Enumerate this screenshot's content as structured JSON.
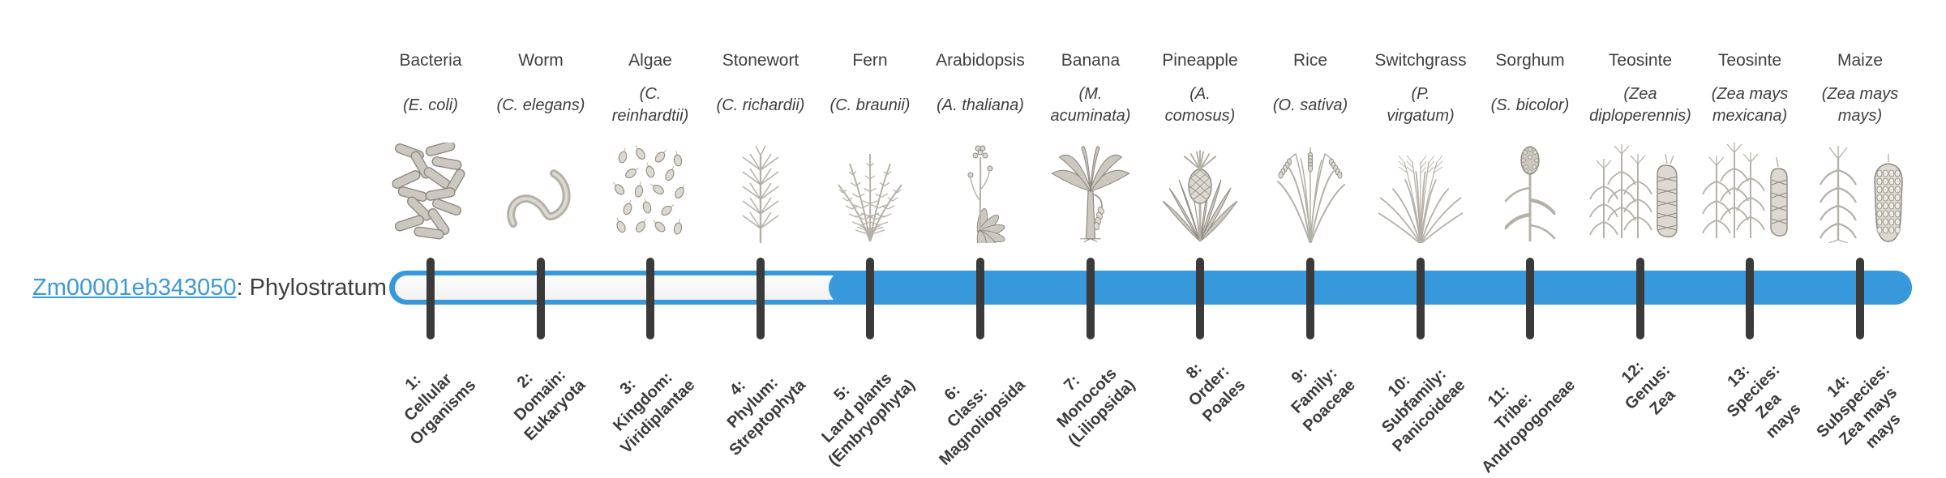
{
  "gene": {
    "id": "Zm00001eb343050",
    "suffix": ": Phylostratum 5",
    "phylostratum": 5
  },
  "timeline": {
    "bar_color": "#3798db",
    "unfilled_color": "#f8f8f8",
    "tick_color": "#3a3a3a",
    "link_color": "#3f99d5",
    "filled_from_stratum": 5,
    "strata_count": 14
  },
  "organisms": [
    {
      "common": "Bacteria",
      "scientific": "(E. coli)",
      "icon": "bacteria-icon",
      "stratum": "1:\nCellular\nOrganisms"
    },
    {
      "common": "Worm",
      "scientific": "(C. elegans)",
      "icon": "worm-icon",
      "stratum": "2:\nDomain:\nEukaryota"
    },
    {
      "common": "Algae",
      "scientific": "(C.\nreinhardtii)",
      "icon": "algae-icon",
      "stratum": "3:\nKingdom:\nViridiplantae"
    },
    {
      "common": "Stonewort",
      "scientific": "(C. richardii)",
      "icon": "stonewort-icon",
      "stratum": "4:\nPhylum:\nStreptophyta"
    },
    {
      "common": "Fern",
      "scientific": "(C. braunii)",
      "icon": "fern-icon",
      "stratum": "5:\nLand plants\n(Embryophyta)"
    },
    {
      "common": "Arabidopsis",
      "scientific": "(A. thaliana)",
      "icon": "arabidopsis-icon",
      "stratum": "6:\nClass:\nMagnoliopsida"
    },
    {
      "common": "Banana",
      "scientific": "(M.\nacuminata)",
      "icon": "banana-icon",
      "stratum": "7:\nMonocots\n(Liliopsida)"
    },
    {
      "common": "Pineapple",
      "scientific": "(A.\ncomosus)",
      "icon": "pineapple-icon",
      "stratum": "8:\nOrder:\nPoales"
    },
    {
      "common": "Rice",
      "scientific": "(O. sativa)",
      "icon": "rice-icon",
      "stratum": "9:\nFamily:\nPoaceae"
    },
    {
      "common": "Switchgrass",
      "scientific": "(P.\nvirgatum)",
      "icon": "switchgrass-icon",
      "stratum": "10:\nSubfamily:\nPanicoideae"
    },
    {
      "common": "Sorghum",
      "scientific": "(S. bicolor)",
      "icon": "sorghum-icon",
      "stratum": "11:\nTribe:\nAndropogoneae"
    },
    {
      "common": "Teosinte",
      "scientific": "(Zea\ndiploperennis)",
      "icon": "teosinte-diploperennis-icon",
      "stratum": "12:\nGenus:\nZea"
    },
    {
      "common": "Teosinte",
      "scientific": "(Zea mays\nmexicana)",
      "icon": "teosinte-mexicana-icon",
      "stratum": "13:\nSpecies:\nZea\nmays"
    },
    {
      "common": "Maize",
      "scientific": "(Zea mays\nmays)",
      "icon": "maize-icon",
      "stratum": "14:\nSubspecies:\nZea mays\nmays"
    }
  ]
}
